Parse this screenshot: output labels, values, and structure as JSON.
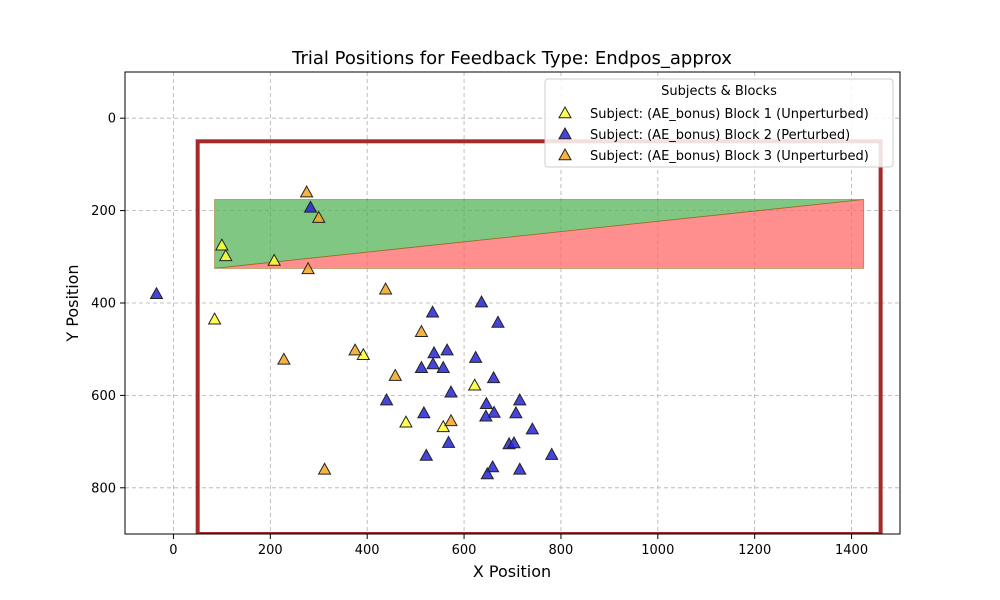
{
  "chart_data": {
    "type": "scatter",
    "title": "Trial Positions for Feedback Type: Endpos_approx",
    "xlabel": "X Position",
    "ylabel": "Y Position",
    "xlim": [
      -100,
      1500
    ],
    "ylim": [
      900,
      -100
    ],
    "y_inverted": true,
    "x_ticks": [
      0,
      200,
      400,
      600,
      800,
      1000,
      1200,
      1400
    ],
    "y_ticks": [
      0,
      200,
      400,
      600,
      800
    ],
    "grid": true,
    "legend": {
      "title": "Subjects & Blocks",
      "placement": "top-right"
    },
    "boundary_rect": {
      "x0": 50,
      "y0": 50,
      "x1": 1460,
      "y1": 900,
      "color": "#a52a2a"
    },
    "regions": [
      {
        "color": "#4caf50",
        "polygon": [
          [
            85,
            176
          ],
          [
            1425,
            176
          ],
          [
            85,
            325
          ]
        ]
      },
      {
        "color": "#ff6060",
        "polygon": [
          [
            85,
            325
          ],
          [
            1425,
            176
          ],
          [
            1425,
            325
          ]
        ]
      }
    ],
    "series": [
      {
        "name": "Subject: (AE_bonus) Block 1 (Unperturbed)",
        "color": "#ffff33",
        "points": [
          [
            100,
            275
          ],
          [
            108,
            298
          ],
          [
            208,
            308
          ],
          [
            85,
            435
          ],
          [
            392,
            512
          ],
          [
            480,
            658
          ],
          [
            557,
            668
          ],
          [
            622,
            578
          ]
        ]
      },
      {
        "name": "Subject: (AE_bonus) Block 2 (Perturbed)",
        "color": "#2424d6",
        "points": [
          [
            -35,
            380
          ],
          [
            283,
            193
          ],
          [
            535,
            420
          ],
          [
            636,
            398
          ],
          [
            670,
            442
          ],
          [
            538,
            508
          ],
          [
            565,
            502
          ],
          [
            536,
            532
          ],
          [
            512,
            540
          ],
          [
            557,
            540
          ],
          [
            624,
            518
          ],
          [
            661,
            562
          ],
          [
            573,
            593
          ],
          [
            440,
            610
          ],
          [
            646,
            618
          ],
          [
            662,
            637
          ],
          [
            715,
            610
          ],
          [
            707,
            638
          ],
          [
            517,
            638
          ],
          [
            645,
            645
          ],
          [
            741,
            673
          ],
          [
            568,
            702
          ],
          [
            693,
            705
          ],
          [
            703,
            703
          ],
          [
            522,
            730
          ],
          [
            781,
            728
          ],
          [
            659,
            755
          ],
          [
            715,
            760
          ],
          [
            648,
            770
          ]
        ]
      },
      {
        "name": "Subject: (AE_bonus) Block 3 (Unperturbed)",
        "color": "#f5a623",
        "points": [
          [
            275,
            160
          ],
          [
            300,
            215
          ],
          [
            278,
            326
          ],
          [
            438,
            370
          ],
          [
            512,
            462
          ],
          [
            228,
            522
          ],
          [
            375,
            502
          ],
          [
            458,
            557
          ],
          [
            573,
            655
          ],
          [
            312,
            760
          ]
        ]
      }
    ]
  }
}
